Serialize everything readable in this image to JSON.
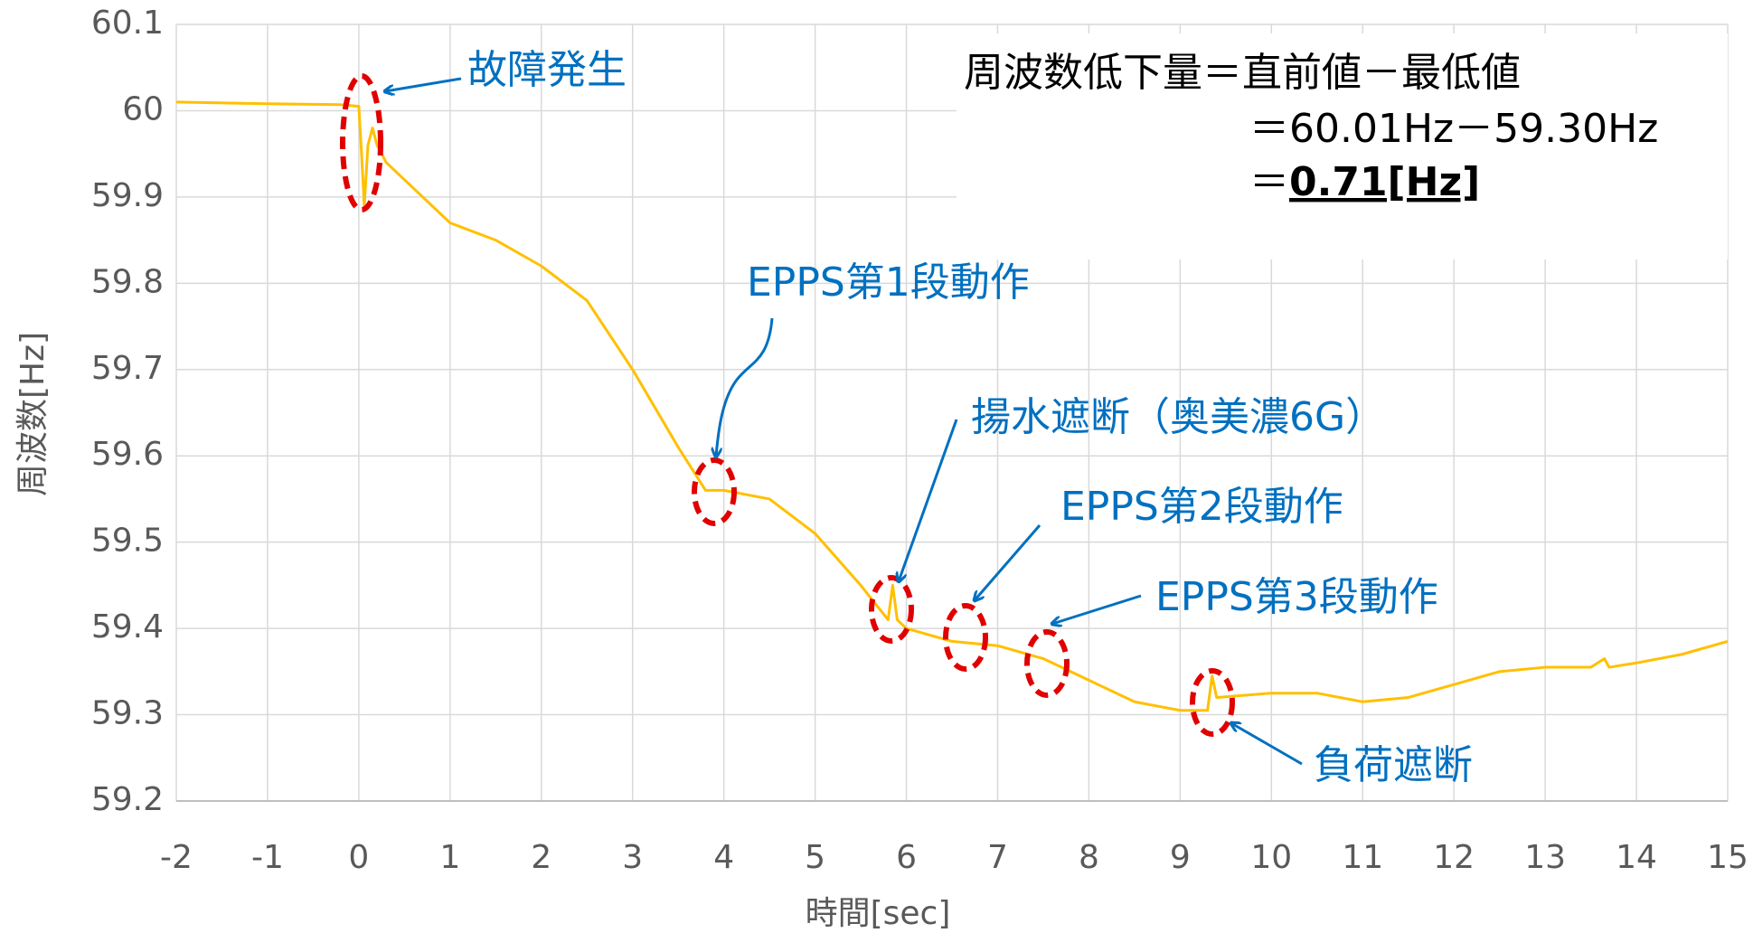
{
  "chart_data": {
    "type": "line",
    "x_label": "時間[sec]",
    "y_label": "周波数[Hz]",
    "xlim": [
      -2,
      15
    ],
    "ylim": [
      59.2,
      60.1
    ],
    "xticks": [
      -2,
      -1,
      0,
      1,
      2,
      3,
      4,
      5,
      6,
      7,
      8,
      9,
      10,
      11,
      12,
      13,
      14,
      15
    ],
    "yticks": [
      59.2,
      59.3,
      59.4,
      59.5,
      59.6,
      59.7,
      59.8,
      59.9,
      60,
      60.1
    ],
    "grid": true,
    "series": [
      {
        "name": "周波数",
        "color": "#ffc000",
        "x": [
          -2,
          -1,
          -0.2,
          0,
          0.03,
          0.06,
          0.1,
          0.15,
          0.2,
          0.3,
          0.5,
          1,
          1.5,
          2,
          2.5,
          3,
          3.5,
          3.8,
          4,
          4.5,
          5,
          5.5,
          5.8,
          5.85,
          5.9,
          6,
          6.5,
          7,
          7.5,
          8,
          8.5,
          9,
          9.3,
          9.35,
          9.4,
          10,
          10.5,
          11,
          11.5,
          12,
          12.5,
          13,
          13.5,
          13.65,
          13.7,
          14,
          14.5,
          15
        ],
        "values": [
          60.01,
          60.008,
          60.007,
          60.005,
          59.95,
          59.89,
          59.96,
          59.98,
          59.96,
          59.94,
          59.92,
          59.87,
          59.85,
          59.82,
          59.78,
          59.7,
          59.61,
          59.56,
          59.56,
          59.55,
          59.51,
          59.45,
          59.41,
          59.45,
          59.41,
          59.4,
          59.385,
          59.38,
          59.365,
          59.34,
          59.315,
          59.305,
          59.305,
          59.345,
          59.32,
          59.325,
          59.325,
          59.315,
          59.32,
          59.335,
          59.35,
          59.355,
          59.355,
          59.365,
          59.355,
          59.36,
          59.37,
          59.385
        ]
      }
    ],
    "annotations": [
      "故障発生",
      "EPPS第1段動作",
      "揚水遮断（奥美濃6G）",
      "EPPS第2段動作",
      "EPPS第3段動作",
      "負荷遮断"
    ],
    "formula": [
      "周波数低下量＝直前値－最低値",
      "＝60.01Hz－59.30Hz",
      "＝",
      "0.71[Hz]"
    ]
  }
}
